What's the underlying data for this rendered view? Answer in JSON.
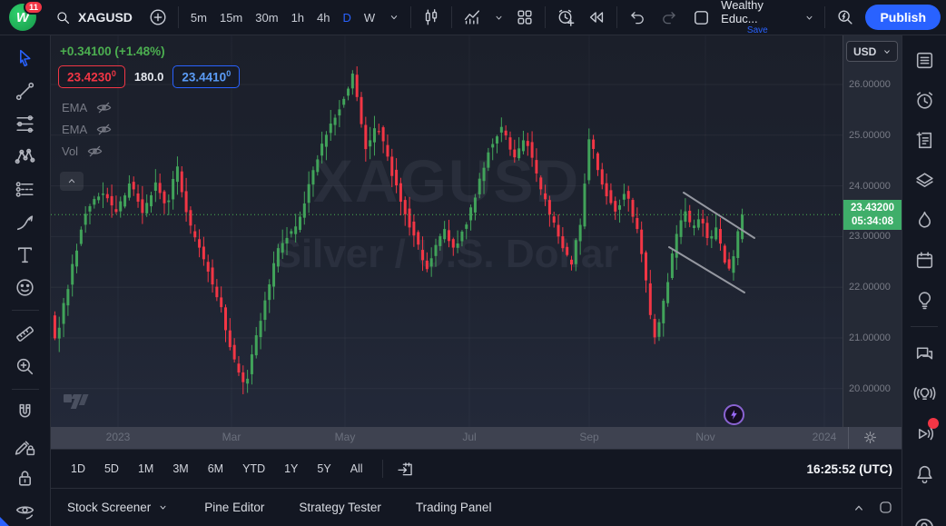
{
  "header": {
    "logo_badge": "11",
    "symbol": "XAGUSD",
    "intervals": [
      "5m",
      "15m",
      "30m",
      "1h",
      "4h",
      "D",
      "W"
    ],
    "active_interval": "D",
    "layout_name": "Wealthy Educ...",
    "save_label": "Save",
    "publish_label": "Publish",
    "icon_buttons": [
      "search-icon",
      "plus-circle-icon",
      "chevron-down-icon",
      "candles-icon",
      "indicators-icon",
      "grid-layout-icon",
      "alert-clock-icon",
      "replay-icon",
      "undo-icon",
      "redo-icon",
      "layout-square-icon",
      "bolt-search-icon"
    ]
  },
  "left_toolbar": [
    "cursor-icon",
    "trend-line-icon",
    "fib-retracement-icon",
    "xabcd-pattern-icon",
    "long-position-icon",
    "brush-icon",
    "text-tool-icon",
    "emoji-icon",
    "divider",
    "ruler-icon",
    "zoom-in-icon",
    "divider",
    "magnet-icon",
    "drawing-lock-icon",
    "lock-all-icon",
    "hide-drawings-icon"
  ],
  "right_toolbar": [
    "watchlist-icon",
    "alarm-icon",
    "notes-icon",
    "object-tree-icon",
    "hotlist-icon",
    "calendar-icon",
    "idea-bulb-icon",
    "divider",
    "chat-icon",
    "live-ideas-icon",
    "streams-icon",
    "bell-icon"
  ],
  "right_toolbar_badge_on": "streams-icon",
  "help_icon": "help-icon",
  "legend": {
    "change_text": "+0.34100 (+1.48%)",
    "bid_main": "23.4230",
    "bid_sup": "0",
    "spread": "180.0",
    "ask_main": "23.4410",
    "ask_sup": "0",
    "indicators": [
      {
        "label": "EMA",
        "icon": "eye-slash-icon"
      },
      {
        "label": "EMA",
        "icon": "eye-slash-icon"
      },
      {
        "label": "Vol",
        "icon": "eye-slash-icon"
      }
    ]
  },
  "price_scale": {
    "currency": "USD",
    "tick_labels": [
      "26.00000",
      "25.00000",
      "24.00000",
      "23.00000",
      "22.00000",
      "21.00000",
      "20.00000"
    ],
    "last_price": "23.43200",
    "countdown": "05:34:08"
  },
  "range_bar": {
    "ranges": [
      "1D",
      "5D",
      "1M",
      "3M",
      "6M",
      "YTD",
      "1Y",
      "5Y",
      "All"
    ],
    "clock": "16:25:52 (UTC)"
  },
  "footer": {
    "tabs": [
      "Stock Screener",
      "Pine Editor",
      "Strategy Tester",
      "Trading Panel"
    ],
    "chevron_tab": "Stock Screener"
  },
  "watermark": {
    "line1": "XAGUSD",
    "line2": "Silver / U.S. Dollar"
  },
  "chart_data": {
    "type": "candlestick",
    "symbol": "XAGUSD",
    "description": "Silver / U.S. Dollar",
    "interval": "D",
    "currency": "USD",
    "y_ticks": [
      26,
      25,
      24,
      23,
      22,
      21,
      20
    ],
    "y_axis_range": [
      19.3,
      26.9
    ],
    "x_labels": [
      "2023",
      "Mar",
      "May",
      "Jul",
      "Sep",
      "Nov",
      "2024"
    ],
    "last_price": 23.432,
    "change_abs": 0.341,
    "change_pct": 1.48,
    "bid": 23.423,
    "ask": 23.441,
    "grid": true,
    "candle_count": 158,
    "colors": {
      "up": "#41a35a",
      "down": "#f23645",
      "last_price_line": "#4caf50",
      "drawing": "#9598a1"
    },
    "price_path": [
      [
        0.0,
        21.4
      ],
      [
        0.008,
        20.95
      ],
      [
        0.03,
        22.3
      ],
      [
        0.048,
        23.4
      ],
      [
        0.075,
        23.9
      ],
      [
        0.095,
        23.45
      ],
      [
        0.115,
        24.05
      ],
      [
        0.135,
        23.45
      ],
      [
        0.152,
        24.1
      ],
      [
        0.168,
        23.55
      ],
      [
        0.182,
        24.45
      ],
      [
        0.2,
        23.25
      ],
      [
        0.222,
        22.55
      ],
      [
        0.245,
        21.65
      ],
      [
        0.265,
        20.55
      ],
      [
        0.281,
        20.02
      ],
      [
        0.302,
        21.3
      ],
      [
        0.33,
        22.8
      ],
      [
        0.358,
        23.25
      ],
      [
        0.39,
        24.75
      ],
      [
        0.418,
        25.55
      ],
      [
        0.437,
        26.2
      ],
      [
        0.455,
        24.7
      ],
      [
        0.472,
        25.25
      ],
      [
        0.495,
        24.2
      ],
      [
        0.52,
        23.2
      ],
      [
        0.545,
        22.35
      ],
      [
        0.567,
        23.15
      ],
      [
        0.585,
        22.75
      ],
      [
        0.61,
        23.6
      ],
      [
        0.635,
        24.8
      ],
      [
        0.652,
        25.15
      ],
      [
        0.67,
        24.55
      ],
      [
        0.688,
        24.95
      ],
      [
        0.71,
        23.85
      ],
      [
        0.73,
        23.15
      ],
      [
        0.752,
        22.4
      ],
      [
        0.768,
        23.4
      ],
      [
        0.778,
        25.0
      ],
      [
        0.795,
        24.15
      ],
      [
        0.815,
        23.5
      ],
      [
        0.832,
        23.9
      ],
      [
        0.85,
        23.0
      ],
      [
        0.862,
        22.0
      ],
      [
        0.871,
        20.95
      ],
      [
        0.885,
        21.6
      ],
      [
        0.9,
        22.7
      ],
      [
        0.915,
        23.55
      ],
      [
        0.928,
        23.1
      ],
      [
        0.94,
        23.45
      ],
      [
        0.952,
        22.85
      ],
      [
        0.963,
        23.2
      ],
      [
        0.974,
        22.55
      ],
      [
        0.983,
        22.25
      ],
      [
        0.991,
        22.9
      ],
      [
        1.0,
        23.43
      ]
    ],
    "drawings": {
      "descending_channel": {
        "upper": [
          [
            697,
            173
          ],
          [
            775,
            223
          ]
        ],
        "lower": [
          [
            681,
            233
          ],
          [
            764,
            283
          ]
        ],
        "color": "#9598a1"
      }
    }
  }
}
